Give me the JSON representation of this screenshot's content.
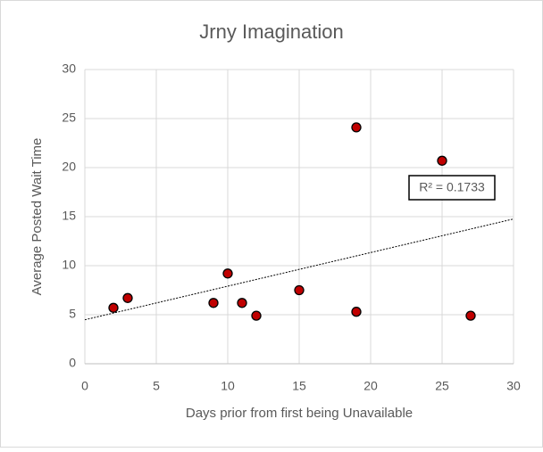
{
  "chart_data": {
    "type": "scatter",
    "title": "Jrny Imagination",
    "x_label": "Days prior from first being Unavailable",
    "y_label": "Average Posted Wait Time",
    "x": [
      2,
      3,
      9,
      10,
      11,
      12,
      15,
      19,
      19,
      25,
      27
    ],
    "values": [
      5.7,
      6.7,
      6.2,
      9.2,
      6.2,
      4.9,
      7.5,
      24.1,
      5.3,
      20.7,
      4.9
    ],
    "color": "#c00000",
    "xlim": [
      0,
      30
    ],
    "xticks": [
      0,
      5,
      10,
      15,
      20,
      25,
      30
    ],
    "ylim": [
      0,
      30
    ],
    "yticks": [
      0,
      5,
      10,
      15,
      20,
      25,
      30
    ],
    "grid": true,
    "trendline": "linear",
    "annotation": "R² = 0.1733"
  }
}
